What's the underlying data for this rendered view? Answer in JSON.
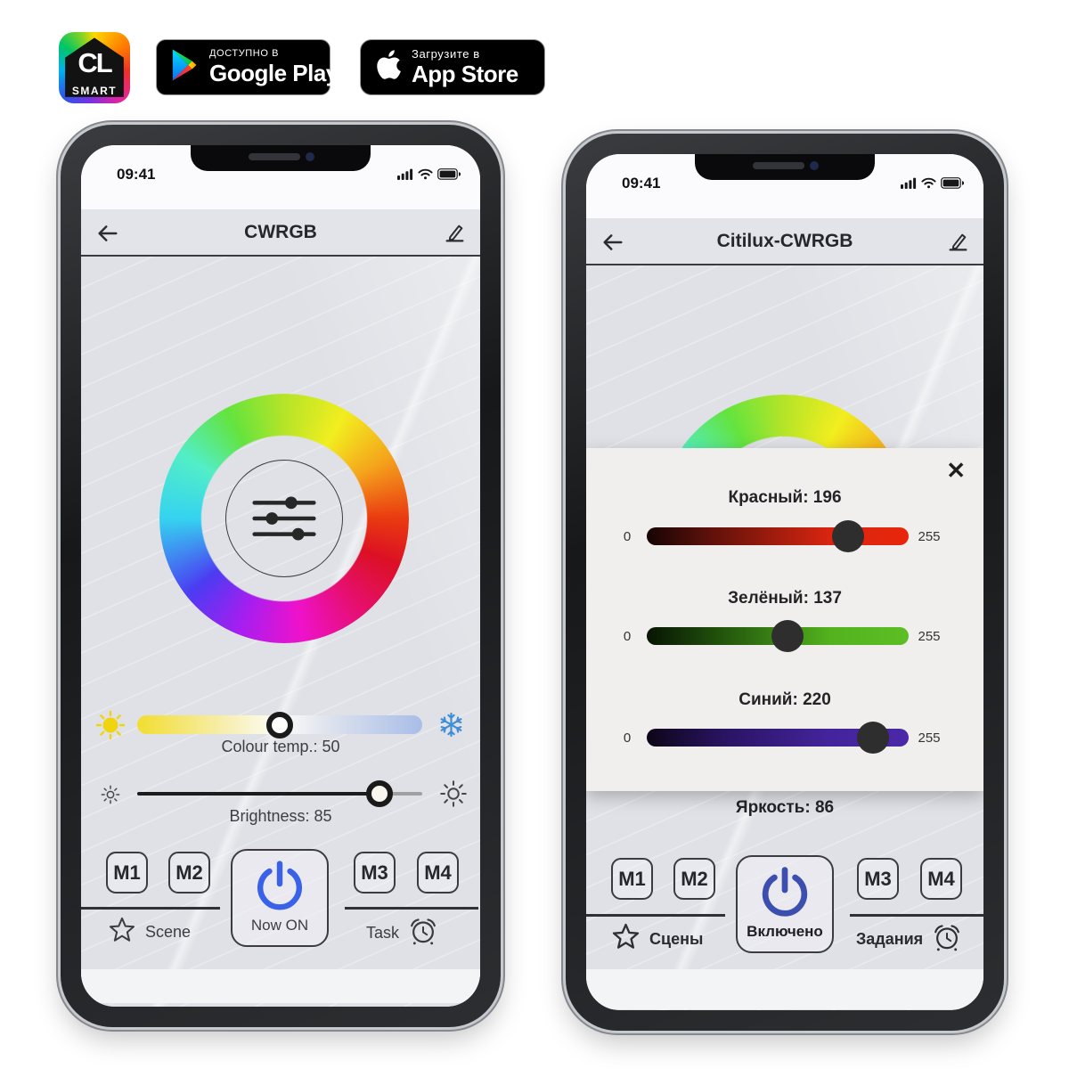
{
  "badges": {
    "logo_line1": "CL",
    "logo_line2": "SMART",
    "google_play_small": "ДОСТУПНО В",
    "google_play_large": "Google Play",
    "app_store_small": "Загрузите в",
    "app_store_large": "App Store"
  },
  "phone_left": {
    "time": "09:41",
    "title": "CWRGB",
    "color_temp": {
      "label": "Colour temp.: 50",
      "value": 50,
      "max": 100
    },
    "brightness": {
      "label": "Brightness: 85",
      "value": 85,
      "max": 100
    },
    "memory_buttons": [
      "M1",
      "M2",
      "M3",
      "M4"
    ],
    "power_label": "Now ON",
    "scene_label": "Scene",
    "task_label": "Task"
  },
  "phone_right": {
    "time": "09:41",
    "title": "Citilux-CWRGB",
    "close_label": "✕",
    "sliders": [
      {
        "label": "Красный: 196",
        "value": 196,
        "max": 255,
        "min_label": "0",
        "max_label": "255"
      },
      {
        "label": "Зелёный: 137",
        "value": 137,
        "max": 255,
        "min_label": "0",
        "max_label": "255"
      },
      {
        "label": "Синий: 220",
        "value": 220,
        "max": 255,
        "min_label": "0",
        "max_label": "255"
      }
    ],
    "brightness_label": "Яркость: 86",
    "memory_buttons": [
      "M1",
      "M2",
      "M3",
      "M4"
    ],
    "power_label": "Включено",
    "scene_label": "Сцены",
    "task_label": "Задания"
  },
  "colors": {
    "power_left": "#3a62e8",
    "power_right": "#3c4fae",
    "snowflake": "#3e8ed6",
    "sun_warm": "#f0d410",
    "red_track": "#e8260c",
    "green_track": "#5cbe24",
    "blue_track": "#4a28a8"
  }
}
